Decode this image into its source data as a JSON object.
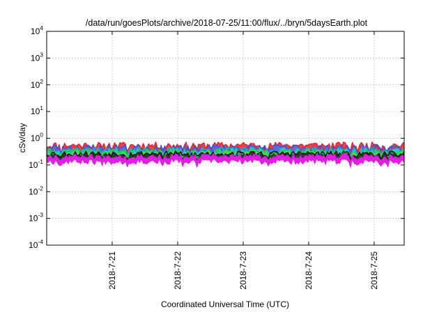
{
  "chart_data": {
    "type": "area",
    "title": "/data/run/goesPlots/archive/2018-07-25/11:00/flux/../bryn/5daysEarth.plot",
    "xlabel": "Coordinated Universal Time (UTC)",
    "ylabel": "cSv/day",
    "y_scale": "log",
    "ylim": [
      0.0001,
      10000
    ],
    "y_ticks": [
      {
        "base": "10",
        "exp": "4"
      },
      {
        "base": "10",
        "exp": "3"
      },
      {
        "base": "10",
        "exp": "2"
      },
      {
        "base": "10",
        "exp": "1"
      },
      {
        "base": "10",
        "exp": "0"
      },
      {
        "base": "10",
        "exp": "-1"
      },
      {
        "base": "10",
        "exp": "-2"
      },
      {
        "base": "10",
        "exp": "-3"
      },
      {
        "base": "10",
        "exp": "-4"
      }
    ],
    "xlim": [
      "2018-07-20 00:00",
      "2018-07-25 11:00"
    ],
    "x_ticks": [
      "2018-7-21",
      "2018-7-22",
      "2018-7-23",
      "2018-7-24",
      "2018-7-25"
    ],
    "grid": true,
    "series": [
      {
        "color": "#e8202a",
        "base": 0.55,
        "amp": 0.22,
        "dip": 0.55,
        "seed": 11
      },
      {
        "color": "#3a56d8",
        "base": 0.45,
        "amp": 0.18,
        "dip": 0.55,
        "seed": 23
      },
      {
        "color": "#19b8c4",
        "base": 0.36,
        "amp": 0.13,
        "dip": 0.5,
        "seed": 37
      },
      {
        "color": "#2fcb3a",
        "base": 0.32,
        "amp": 0.1,
        "dip": 0.5,
        "seed": 41
      },
      {
        "color": "#111111",
        "base": 0.27,
        "amp": 0.08,
        "dip": 0.5,
        "seed": 53
      },
      {
        "color": "#e020e0",
        "base": 0.21,
        "amp": 0.06,
        "dip": 0.6,
        "seed": 67
      }
    ],
    "dips": [
      {
        "t": 0.22,
        "depth": 0.55
      },
      {
        "t": 0.85,
        "depth": 0.5
      },
      {
        "t": 1.24,
        "depth": 0.55
      },
      {
        "t": 1.78,
        "depth": 0.5
      },
      {
        "t": 2.08,
        "depth": 0.45
      },
      {
        "t": 2.18,
        "depth": 0.45
      },
      {
        "t": 2.3,
        "depth": 0.55
      },
      {
        "t": 3.38,
        "depth": 0.5
      },
      {
        "t": 4.25,
        "depth": 0.3
      },
      {
        "t": 4.63,
        "depth": 0.55
      },
      {
        "t": 4.75,
        "depth": 0.5
      },
      {
        "t": 5.1,
        "depth": 0.5
      },
      {
        "t": 5.2,
        "depth": 0.55
      }
    ]
  }
}
